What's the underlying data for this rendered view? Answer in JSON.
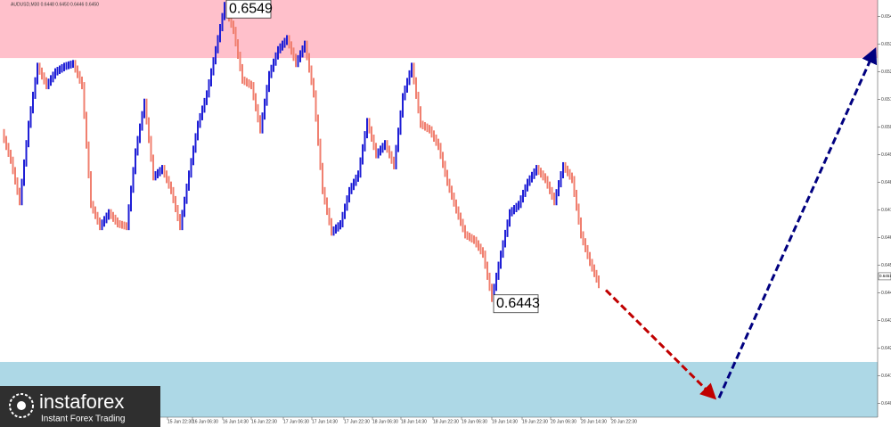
{
  "chart_data": {
    "type": "price-bars",
    "header": "AUDUSD,M30  0.6448 0.6450 0.6446 0.6450",
    "values": [
      0.6503,
      0.6493,
      0.6478,
      0.6506,
      0.6527,
      0.652,
      0.6525,
      0.6527,
      0.6528,
      0.652,
      0.6477,
      0.6469,
      0.6474,
      0.647,
      0.6469,
      0.6496,
      0.6514,
      0.6487,
      0.649,
      0.6482,
      0.6469,
      0.6488,
      0.6506,
      0.6517,
      0.6533,
      0.6549,
      0.654,
      0.6522,
      0.652,
      0.6504,
      0.6524,
      0.6533,
      0.6537,
      0.6528,
      0.6535,
      0.6517,
      0.6482,
      0.6467,
      0.647,
      0.6482,
      0.6488,
      0.6507,
      0.6495,
      0.6499,
      0.6491,
      0.6516,
      0.6527,
      0.6506,
      0.6504,
      0.6498,
      0.6485,
      0.6475,
      0.6466,
      0.6464,
      0.6459,
      0.6443,
      0.6459,
      0.6474,
      0.6477,
      0.6485,
      0.649,
      0.6486,
      0.6478,
      0.6491,
      0.6486,
      0.6466,
      0.6456,
      0.6448
    ],
    "up_color": "#1f1fd6",
    "down_color": "#f08070",
    "annotations": [
      0.6549,
      0.6443
    ],
    "current_price": 0.6451,
    "zones": [
      {
        "from": 0.653,
        "to": 0.6551,
        "color": "#ffc0cb"
      },
      {
        "from": 0.64,
        "to": 0.642,
        "color": "#add8e6"
      }
    ],
    "forecast": [
      {
        "color": "#c00000",
        "x": [
          67.8,
          80
        ],
        "values": [
          0.6446,
          0.6407
        ]
      },
      {
        "color": "#000080",
        "x": [
          80.5,
          98
        ],
        "values": [
          0.6407,
          0.6533
        ]
      }
    ],
    "ylim": [
      0.64,
      0.6551
    ],
    "yticks": [
      0.6545,
      0.6535,
      0.6525,
      0.6515,
      0.6505,
      0.6495,
      0.6485,
      0.6475,
      0.6465,
      0.6455,
      0.6445,
      0.6435,
      0.6425,
      0.6415,
      0.6405
    ],
    "xticks": [
      {
        "value": 18.6,
        "label": "15 Jun 22:30"
      },
      {
        "value": 21.4,
        "label": "16 Jun 06:30"
      },
      {
        "value": 24.8,
        "label": "16 Jun 14:30"
      },
      {
        "value": 28,
        "label": "16 Jun 22:30"
      },
      {
        "value": 31.6,
        "label": "17 Jun 06:30"
      },
      {
        "value": 34.8,
        "label": "17 Jun 14:30"
      },
      {
        "value": 38.4,
        "label": "17 Jun 22:30"
      },
      {
        "value": 41.6,
        "label": "18 Jun 06:30"
      },
      {
        "value": 44.8,
        "label": "18 Jun 14:30"
      },
      {
        "value": 48.4,
        "label": "18 Jun 22:30"
      },
      {
        "value": 51.6,
        "label": "19 Jun 06:30"
      },
      {
        "value": 55,
        "label": "19 Jun 14:30"
      },
      {
        "value": 58.4,
        "label": "19 Jun 22:30"
      },
      {
        "value": 61.6,
        "label": "20 Jun 06:30"
      },
      {
        "value": 65,
        "label": "20 Jun 14:30"
      },
      {
        "value": 68.4,
        "label": "20 Jun 22:30"
      }
    ],
    "brand": {
      "name": "instaforex",
      "tagline": "Instant Forex Trading"
    }
  }
}
